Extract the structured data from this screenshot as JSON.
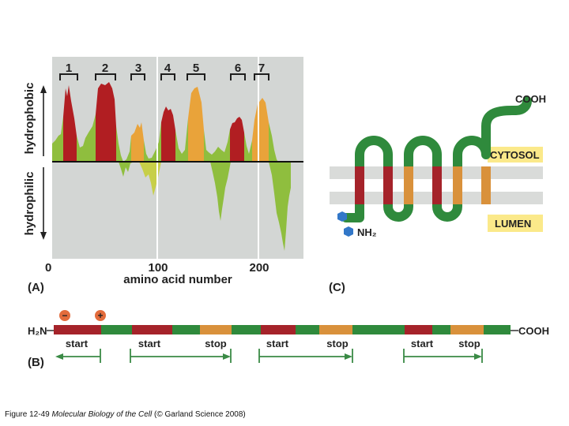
{
  "panel_a": {
    "label": "(A)",
    "y_upper_label": "hydrophobic",
    "y_lower_label": "hydrophilic",
    "x_label": "amino acid number",
    "x_ticks": [
      "0",
      "100",
      "200"
    ],
    "segments": [
      "1",
      "2",
      "3",
      "4",
      "5",
      "6",
      "7"
    ],
    "colors": {
      "bg": "#d3d6d4",
      "red": "#b11e22",
      "orange": "#e9a33a",
      "green": "#8fbe3e",
      "yellow_green": "#c7cf48"
    }
  },
  "panel_c": {
    "label": "(C)",
    "cooh": "COOH",
    "cytosol": "CYTOSOL",
    "lumen": "LUMEN",
    "nh2": "NH₂",
    "colors": {
      "tube": "#2f8a3c",
      "red": "#a5232a",
      "orange": "#d9913b",
      "tag": "#fbe98a",
      "membrane": "#d9dbd9"
    }
  },
  "panel_b": {
    "label": "(B)",
    "n_term": "H₂N",
    "c_term": "COOH",
    "minus": "−",
    "plus": "+",
    "signals": [
      "start",
      "start",
      "stop",
      "start",
      "stop",
      "start",
      "stop"
    ]
  },
  "caption": {
    "prefix": "Figure 12-49",
    "title": "Molecular Biology of the Cell",
    "suffix": "(© Garland Science 2008)"
  }
}
